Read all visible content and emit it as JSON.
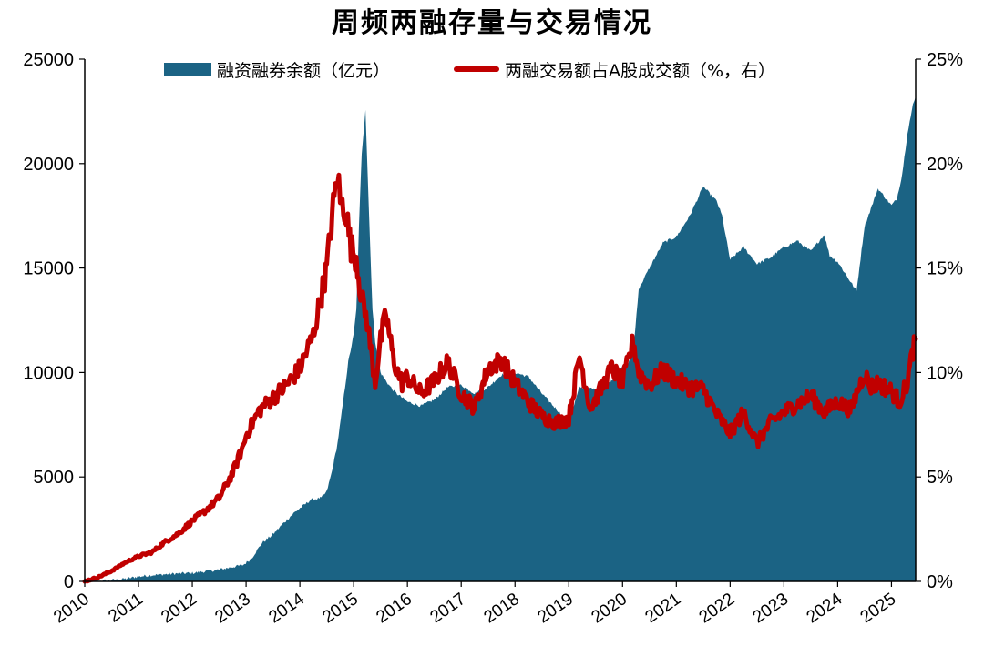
{
  "chart_data": {
    "type": "area",
    "title": "周频两融存量与交易情况",
    "x_ticks": [
      "2010",
      "2011",
      "2012",
      "2013",
      "2014",
      "2015",
      "2016",
      "2017",
      "2018",
      "2019",
      "2020",
      "2021",
      "2022",
      "2023",
      "2024",
      "2025"
    ],
    "x_range": [
      2010.0,
      2025.45
    ],
    "y_left": {
      "ticks": [
        "0",
        "5000",
        "10000",
        "15000",
        "20000",
        "25000"
      ],
      "range": [
        0,
        25000
      ]
    },
    "y_right": {
      "ticks": [
        "0%",
        "5%",
        "10%",
        "15%",
        "20%",
        "25%"
      ],
      "range": [
        0,
        25
      ]
    },
    "series": [
      {
        "name": "融资融券余额（亿元）",
        "kind": "area",
        "axis": "left",
        "color": "#1b6384",
        "points": [
          [
            2010.0,
            0
          ],
          [
            2010.25,
            20
          ],
          [
            2010.5,
            60
          ],
          [
            2010.75,
            120
          ],
          [
            2011.0,
            230
          ],
          [
            2011.25,
            300
          ],
          [
            2011.5,
            340
          ],
          [
            2011.75,
            380
          ],
          [
            2012.0,
            400
          ],
          [
            2012.25,
            480
          ],
          [
            2012.5,
            560
          ],
          [
            2012.75,
            690
          ],
          [
            2012.95,
            790
          ],
          [
            2013.1,
            1100
          ],
          [
            2013.3,
            1850
          ],
          [
            2013.5,
            2250
          ],
          [
            2013.7,
            2800
          ],
          [
            2013.9,
            3300
          ],
          [
            2014.05,
            3600
          ],
          [
            2014.2,
            3900
          ],
          [
            2014.4,
            4000
          ],
          [
            2014.5,
            4300
          ],
          [
            2014.6,
            5300
          ],
          [
            2014.7,
            6600
          ],
          [
            2014.8,
            8500
          ],
          [
            2014.9,
            10500
          ],
          [
            2015.0,
            11800
          ],
          [
            2015.05,
            13000
          ],
          [
            2015.1,
            17000
          ],
          [
            2015.15,
            20500
          ],
          [
            2015.22,
            22600
          ],
          [
            2015.28,
            18000
          ],
          [
            2015.35,
            13000
          ],
          [
            2015.4,
            11500
          ],
          [
            2015.5,
            10000
          ],
          [
            2015.6,
            9600
          ],
          [
            2015.75,
            9100
          ],
          [
            2016.0,
            8600
          ],
          [
            2016.25,
            8400
          ],
          [
            2016.5,
            8700
          ],
          [
            2016.75,
            9300
          ],
          [
            2017.0,
            9400
          ],
          [
            2017.25,
            9000
          ],
          [
            2017.5,
            9300
          ],
          [
            2017.75,
            9900
          ],
          [
            2018.0,
            10000
          ],
          [
            2018.25,
            9800
          ],
          [
            2018.5,
            9000
          ],
          [
            2018.75,
            8300
          ],
          [
            2019.0,
            7600
          ],
          [
            2019.2,
            9300
          ],
          [
            2019.5,
            9200
          ],
          [
            2019.75,
            9500
          ],
          [
            2020.0,
            10300
          ],
          [
            2020.1,
            10400
          ],
          [
            2020.2,
            11000
          ],
          [
            2020.3,
            14000
          ],
          [
            2020.5,
            15000
          ],
          [
            2020.75,
            16200
          ],
          [
            2021.0,
            16500
          ],
          [
            2021.25,
            17500
          ],
          [
            2021.5,
            18900
          ],
          [
            2021.75,
            18200
          ],
          [
            2021.85,
            17500
          ],
          [
            2022.0,
            15400
          ],
          [
            2022.25,
            16000
          ],
          [
            2022.5,
            15200
          ],
          [
            2022.75,
            15500
          ],
          [
            2023.0,
            16000
          ],
          [
            2023.25,
            16300
          ],
          [
            2023.5,
            15800
          ],
          [
            2023.75,
            16600
          ],
          [
            2023.85,
            15600
          ],
          [
            2024.0,
            15300
          ],
          [
            2024.25,
            14300
          ],
          [
            2024.35,
            13900
          ],
          [
            2024.5,
            17000
          ],
          [
            2024.75,
            18800
          ],
          [
            2025.0,
            18000
          ],
          [
            2025.1,
            18300
          ],
          [
            2025.2,
            19500
          ],
          [
            2025.3,
            21500
          ],
          [
            2025.4,
            22800
          ],
          [
            2025.45,
            23200
          ]
        ]
      },
      {
        "name": "两融交易额占A股成交额（%，右）",
        "kind": "line",
        "axis": "right",
        "color": "#c00000",
        "points": [
          [
            2010.0,
            0
          ],
          [
            2010.25,
            0.2
          ],
          [
            2010.5,
            0.5
          ],
          [
            2010.75,
            0.9
          ],
          [
            2011.0,
            1.2
          ],
          [
            2011.25,
            1.4
          ],
          [
            2011.5,
            1.9
          ],
          [
            2011.75,
            2.3
          ],
          [
            2012.0,
            2.9
          ],
          [
            2012.25,
            3.4
          ],
          [
            2012.5,
            4.0
          ],
          [
            2012.75,
            5.2
          ],
          [
            2012.95,
            6.5
          ],
          [
            2013.0,
            7.0
          ],
          [
            2013.25,
            8.2
          ],
          [
            2013.5,
            8.8
          ],
          [
            2013.75,
            9.4
          ],
          [
            2014.0,
            10.2
          ],
          [
            2014.25,
            11.8
          ],
          [
            2014.5,
            15.0
          ],
          [
            2014.6,
            17.5
          ],
          [
            2014.7,
            19.5
          ],
          [
            2014.75,
            18.2
          ],
          [
            2014.85,
            17.8
          ],
          [
            2014.95,
            16.0
          ],
          [
            2015.05,
            15.5
          ],
          [
            2015.15,
            13.5
          ],
          [
            2015.25,
            12.5
          ],
          [
            2015.4,
            9.5
          ],
          [
            2015.5,
            11.5
          ],
          [
            2015.6,
            12.8
          ],
          [
            2015.75,
            10.5
          ],
          [
            2015.9,
            9.5
          ],
          [
            2016.0,
            9.8
          ],
          [
            2016.25,
            9.0
          ],
          [
            2016.5,
            9.6
          ],
          [
            2016.75,
            10.5
          ],
          [
            2017.0,
            9.0
          ],
          [
            2017.25,
            8.3
          ],
          [
            2017.5,
            10.2
          ],
          [
            2017.75,
            10.6
          ],
          [
            2018.0,
            9.5
          ],
          [
            2018.25,
            8.6
          ],
          [
            2018.5,
            7.9
          ],
          [
            2018.75,
            7.6
          ],
          [
            2019.0,
            7.8
          ],
          [
            2019.2,
            10.8
          ],
          [
            2019.4,
            8.3
          ],
          [
            2019.6,
            9.2
          ],
          [
            2019.8,
            10.2
          ],
          [
            2020.0,
            9.5
          ],
          [
            2020.2,
            11.5
          ],
          [
            2020.3,
            10.0
          ],
          [
            2020.5,
            9.4
          ],
          [
            2020.75,
            10.1
          ],
          [
            2021.0,
            9.6
          ],
          [
            2021.25,
            9.3
          ],
          [
            2021.5,
            9.2
          ],
          [
            2021.75,
            8.0
          ],
          [
            2022.0,
            7.1
          ],
          [
            2022.25,
            8.1
          ],
          [
            2022.5,
            6.6
          ],
          [
            2022.75,
            7.6
          ],
          [
            2023.0,
            8.1
          ],
          [
            2023.25,
            8.5
          ],
          [
            2023.5,
            8.9
          ],
          [
            2023.75,
            8.1
          ],
          [
            2024.0,
            8.6
          ],
          [
            2024.25,
            8.2
          ],
          [
            2024.35,
            9.0
          ],
          [
            2024.5,
            10.0
          ],
          [
            2024.6,
            9.3
          ],
          [
            2024.75,
            9.5
          ],
          [
            2025.0,
            9.1
          ],
          [
            2025.15,
            8.6
          ],
          [
            2025.3,
            9.6
          ],
          [
            2025.42,
            11.4
          ],
          [
            2025.45,
            11.6
          ]
        ]
      }
    ],
    "legend_position": "top-center"
  }
}
